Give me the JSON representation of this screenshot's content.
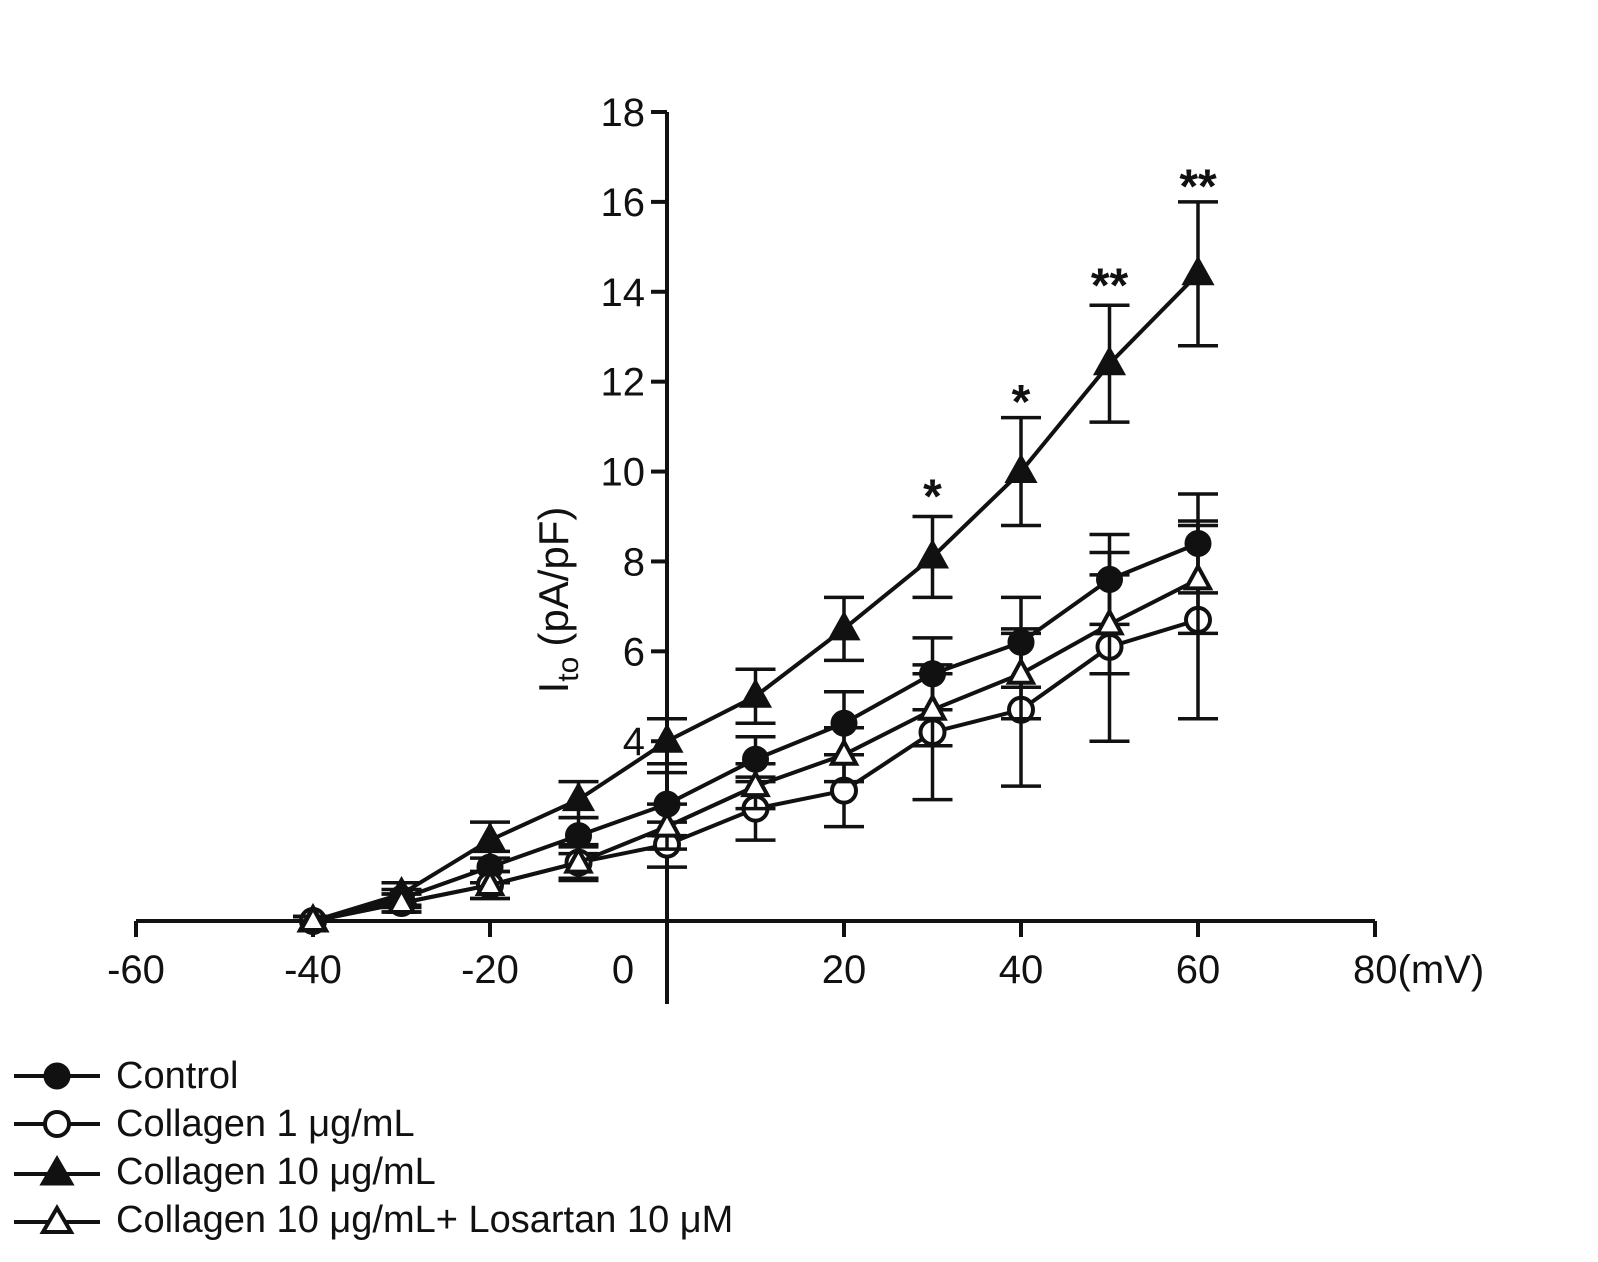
{
  "chart_data": {
    "type": "line",
    "title": "",
    "xlabel": "(mV)",
    "ylabel_main": "I",
    "ylabel_sub": "to",
    "ylabel_unit": "(pA/pF)",
    "xlim": [
      -60,
      80
    ],
    "ylim": [
      0,
      18
    ],
    "x_ticks": [
      -60,
      -40,
      -20,
      0,
      20,
      40,
      60,
      80
    ],
    "x_tick_labels": [
      "-60",
      "-40",
      "-20",
      "0",
      "20",
      "40",
      "60",
      "80"
    ],
    "y_ticks": [
      4,
      6,
      8,
      10,
      12,
      14,
      16,
      18
    ],
    "y_tick_labels": [
      "4",
      "6",
      "8",
      "10",
      "12",
      "14",
      "16",
      "18"
    ],
    "legend_position": "bottom-left",
    "series": [
      {
        "name": "Control",
        "marker": "circle-filled",
        "x": [
          -40,
          -30,
          -20,
          -10,
          0,
          10,
          20,
          30,
          40,
          50,
          60
        ],
        "values": [
          0,
          0.5,
          1.2,
          1.9,
          2.6,
          3.6,
          4.4,
          5.5,
          6.2,
          7.6,
          8.4
        ],
        "errors": [
          0.1,
          0.2,
          0.35,
          0.4,
          0.7,
          0.5,
          0.7,
          0.8,
          1.0,
          1.0,
          1.1
        ]
      },
      {
        "name": "Collagen 1 μg/mL",
        "marker": "circle-open",
        "x": [
          -40,
          -30,
          -20,
          -10,
          0,
          10,
          20,
          30,
          40,
          50,
          60
        ],
        "values": [
          0,
          0.4,
          0.8,
          1.3,
          1.7,
          2.5,
          2.9,
          4.2,
          4.7,
          6.1,
          6.7
        ],
        "errors": [
          0.1,
          0.2,
          0.3,
          0.4,
          0.5,
          0.7,
          0.8,
          1.5,
          1.7,
          2.1,
          2.2
        ]
      },
      {
        "name": "Collagen 10 μg/mL",
        "marker": "triangle-filled",
        "x": [
          -40,
          -30,
          -20,
          -10,
          0,
          10,
          20,
          30,
          40,
          50,
          60
        ],
        "values": [
          0,
          0.6,
          1.8,
          2.7,
          4.0,
          5.0,
          6.5,
          8.1,
          10.0,
          12.4,
          14.4
        ],
        "errors": [
          0.1,
          0.25,
          0.4,
          0.4,
          0.5,
          0.6,
          0.7,
          0.9,
          1.2,
          1.3,
          1.6
        ]
      },
      {
        "name": "Collagen 10 μg/mL+ Losartan 10 μM",
        "marker": "triangle-open",
        "x": [
          -40,
          -30,
          -20,
          -10,
          0,
          10,
          20,
          30,
          40,
          50,
          60
        ],
        "values": [
          0,
          0.4,
          0.8,
          1.3,
          2.1,
          3.0,
          3.7,
          4.7,
          5.5,
          6.6,
          7.6
        ],
        "errors": [
          0.1,
          0.2,
          0.3,
          0.35,
          0.5,
          0.5,
          0.6,
          0.8,
          1.0,
          1.1,
          1.2
        ]
      }
    ],
    "annotations": [
      {
        "x": 30,
        "y": 9.0,
        "text": "*"
      },
      {
        "x": 40,
        "y": 11.1,
        "text": "*"
      },
      {
        "x": 50,
        "y": 13.7,
        "text": "**"
      },
      {
        "x": 60,
        "y": 15.9,
        "text": "**"
      }
    ]
  },
  "legend": {
    "items": [
      {
        "label": "Control"
      },
      {
        "label": "Collagen 1 μg/mL"
      },
      {
        "label": "Collagen 10 μg/mL"
      },
      {
        "label": "Collagen 10 μg/mL+ Losartan 10 μM"
      }
    ]
  }
}
